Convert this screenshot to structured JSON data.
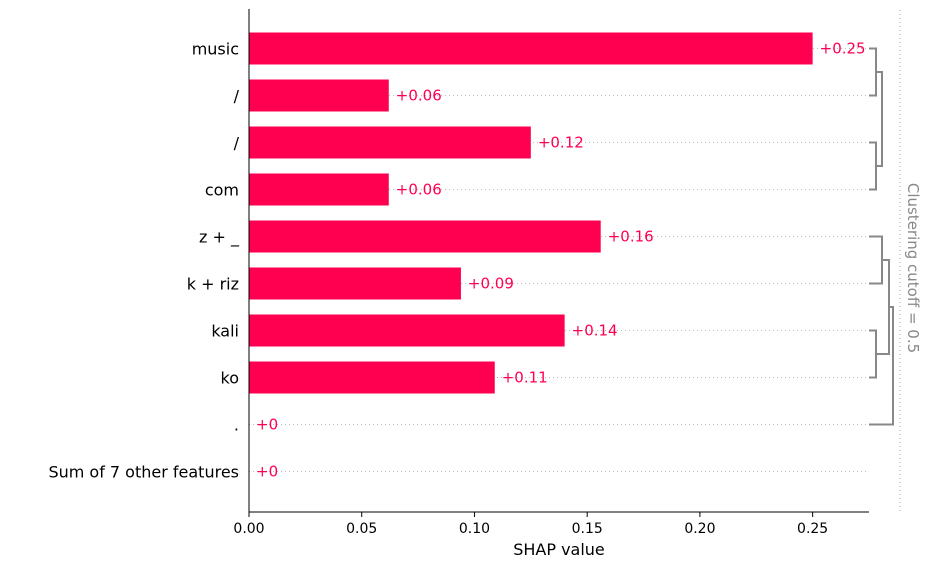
{
  "chart_data": {
    "type": "bar",
    "orientation": "horizontal",
    "xlabel": "SHAP value",
    "xlim": [
      0,
      0.275
    ],
    "xticks": [
      0.0,
      0.05,
      0.1,
      0.15,
      0.2,
      0.25
    ],
    "xtick_labels": [
      "0.00",
      "0.05",
      "0.10",
      "0.15",
      "0.20",
      "0.25"
    ],
    "categories": [
      "music",
      "/",
      "/",
      "com",
      "z + _",
      "k + riz",
      "kali",
      "ko",
      ".",
      "Sum of 7 other features"
    ],
    "values": [
      0.25,
      0.062,
      0.125,
      0.062,
      0.156,
      0.094,
      0.14,
      0.109,
      0.0,
      0.0
    ],
    "value_labels": [
      "+0.25",
      "+0.06",
      "+0.12",
      "+0.06",
      "+0.16",
      "+0.09",
      "+0.14",
      "+0.11",
      "+0",
      "+0"
    ],
    "grid": "dotted row lines",
    "cutoff_label": "Clustering cutoff = 0.5",
    "colors": {
      "bar": "#ff0051",
      "label": "#ff0051",
      "dendrogram": "#888888"
    }
  }
}
